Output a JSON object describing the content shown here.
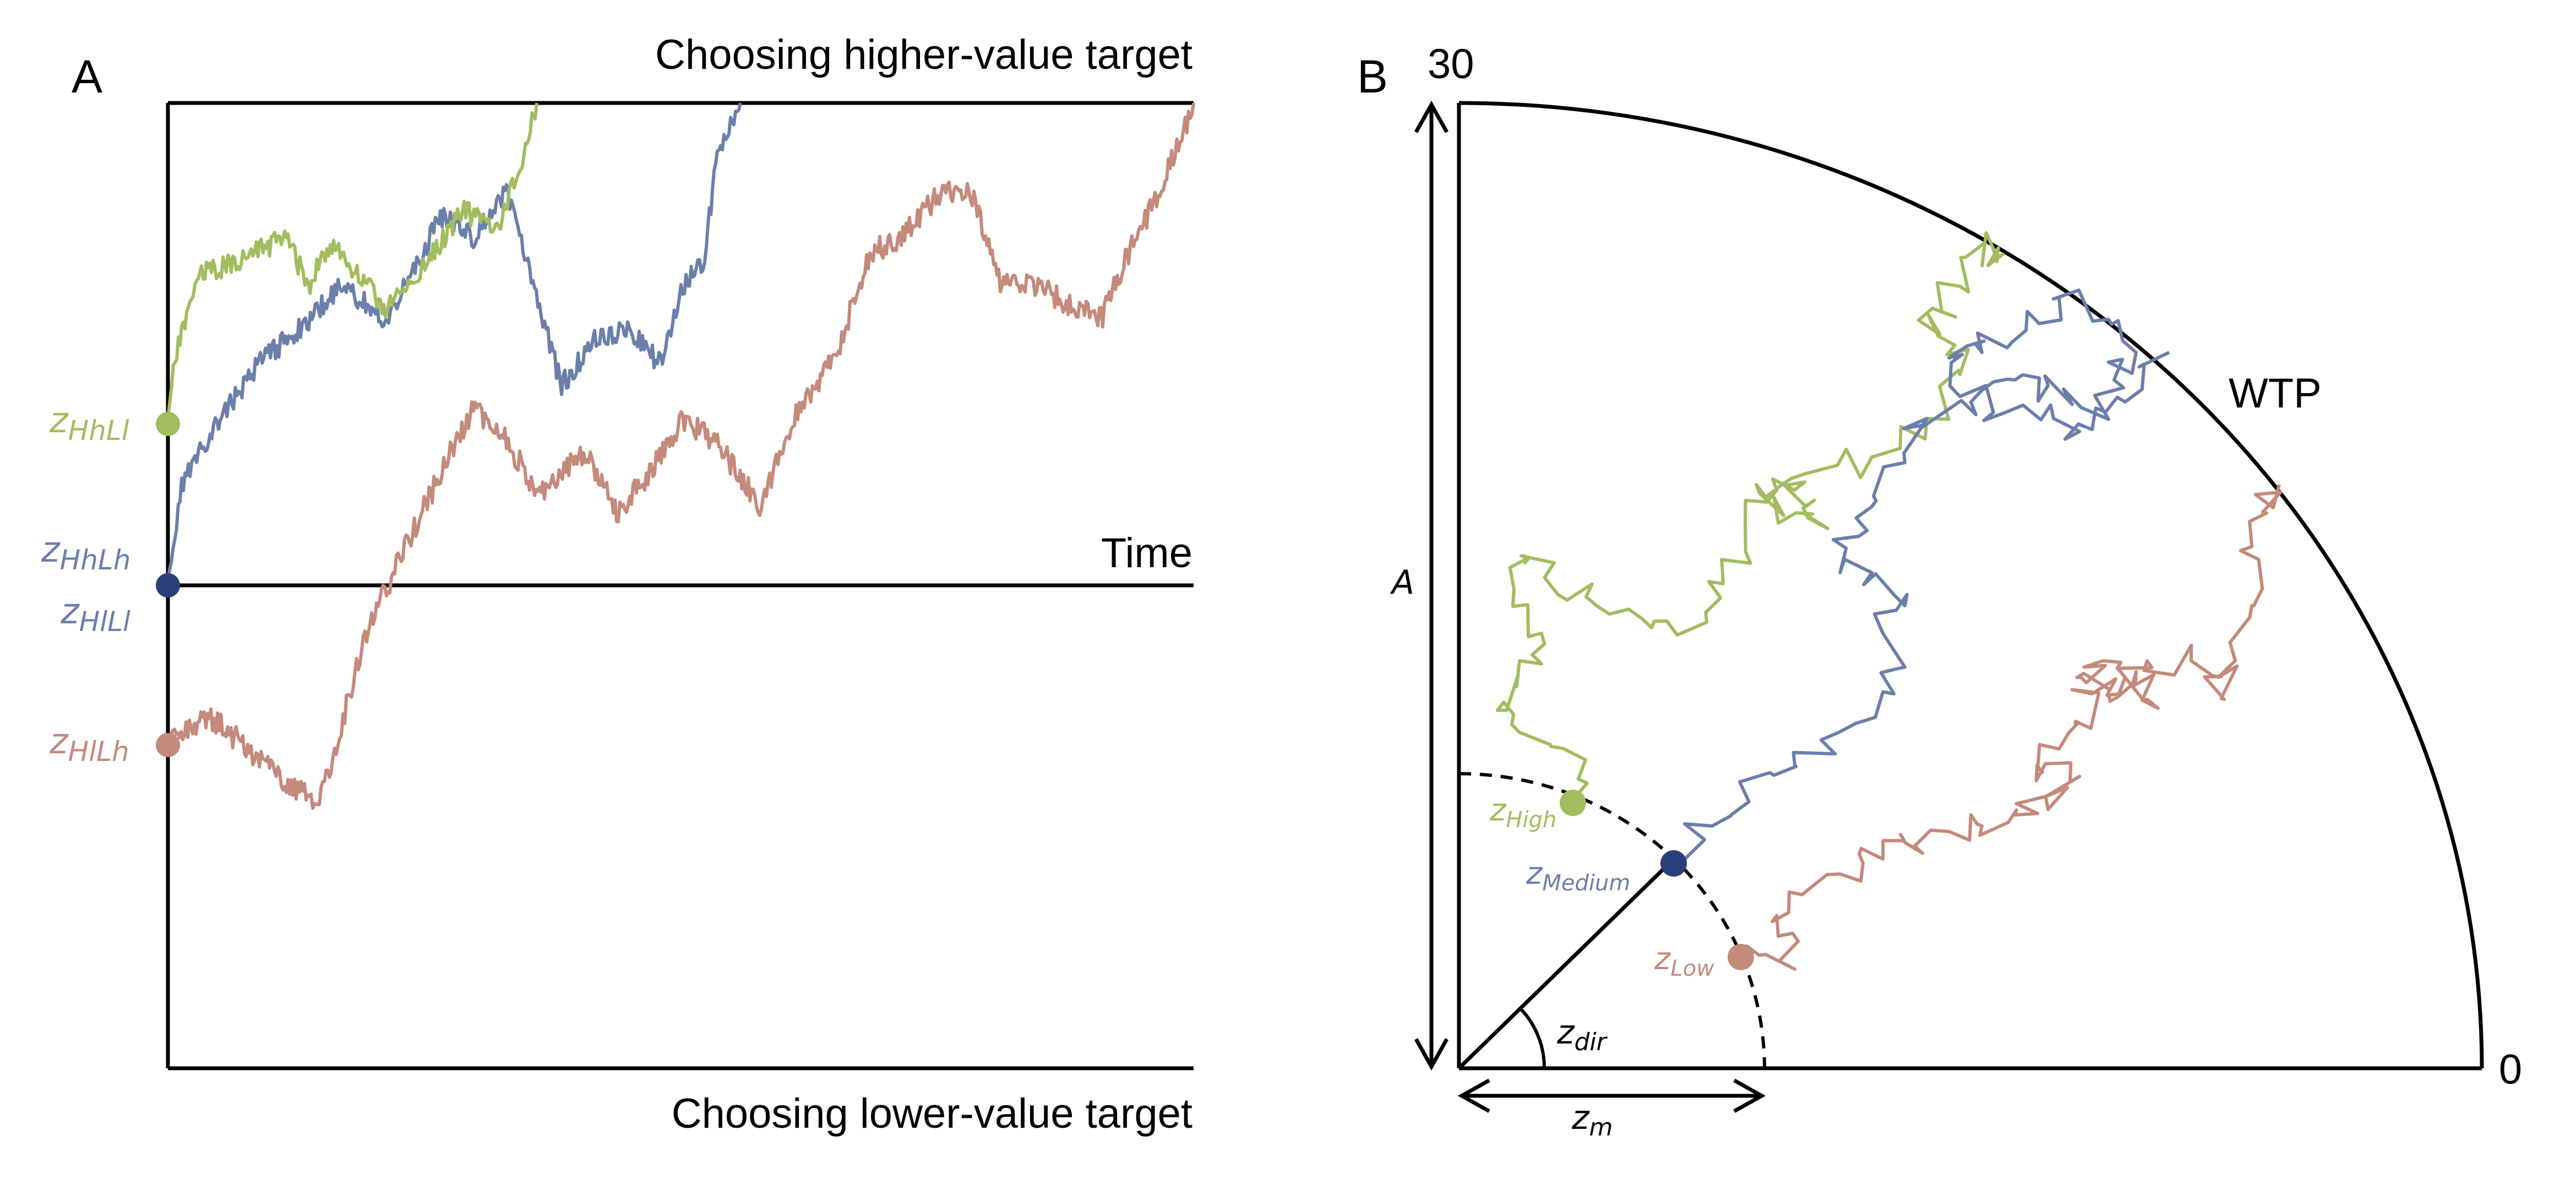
{
  "colors": {
    "green": "#a2bd5f",
    "blue": "#6b7fab",
    "red": "#c48a7b",
    "navy": "#2a3f78",
    "axis": "#000000"
  },
  "panel_a": {
    "letter": "A",
    "top_label": "Choosing higher-value target",
    "bottom_label": "Choosing lower-value target",
    "time_label": "Time",
    "start_labels": {
      "hhll_main": "z",
      "hhll_sub": "HhLl",
      "hhlh_main": "z",
      "hhlh_sub": "HhLh",
      "hlll_main": "z",
      "hlll_sub": "HlLl",
      "hllh_main": "z",
      "hllh_sub": "HlLh"
    }
  },
  "panel_b": {
    "letter": "B",
    "top_value": "30",
    "right_value": "0",
    "wtp_label": "WTP",
    "a_label": "A",
    "zdir_main": "z",
    "zdir_sub": "dir",
    "zm_main": "z",
    "zm_sub": "m",
    "high_main": "z",
    "high_sub": "High",
    "medium_main": "z",
    "medium_sub": "Medium",
    "low_main": "z",
    "low_sub": "Low"
  }
}
